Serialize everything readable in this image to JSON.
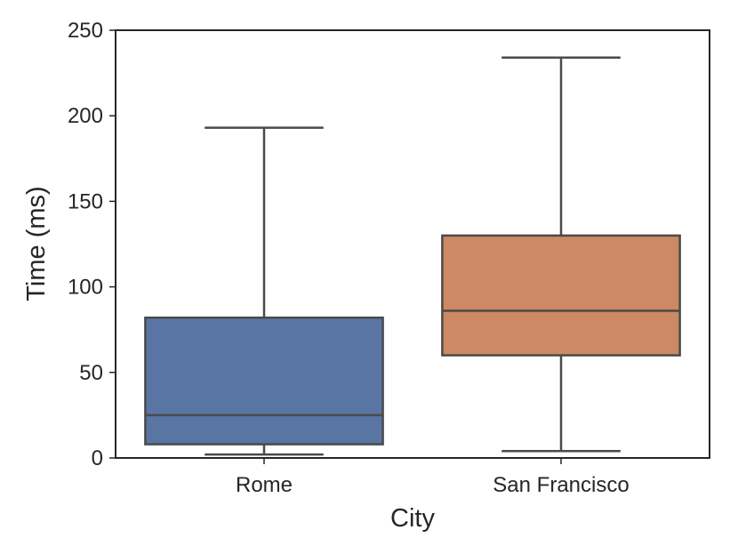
{
  "chart_data": {
    "type": "box",
    "title": "",
    "xlabel": "City",
    "ylabel": "Time (ms)",
    "ylim": [
      0,
      250
    ],
    "yticks": [
      0,
      50,
      100,
      150,
      200,
      250
    ],
    "grid": false,
    "categories": [
      "Rome",
      "San Francisco"
    ],
    "boxes": [
      {
        "category": "Rome",
        "whisker_low": 2,
        "q1": 8,
        "median": 25,
        "q3": 82,
        "whisker_high": 193,
        "color": "#5975a4"
      },
      {
        "category": "San Francisco",
        "whisker_low": 4,
        "q1": 60,
        "median": 86,
        "q3": 130,
        "whisker_high": 234,
        "color": "#cc8963"
      }
    ],
    "line_color": "#4a4a4a",
    "frame_color": "#262626"
  }
}
